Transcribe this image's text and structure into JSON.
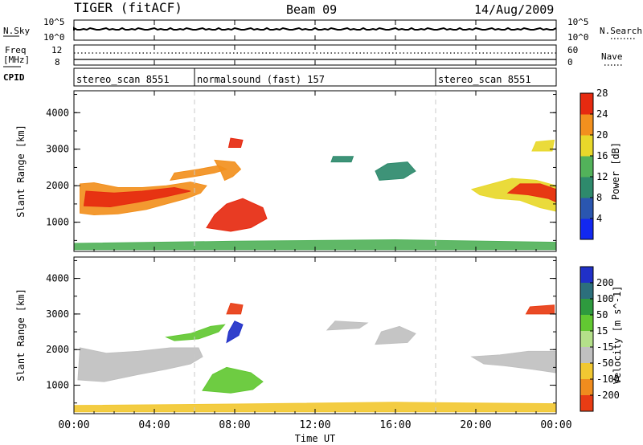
{
  "header": {
    "radar": "TIGER (fitACF)",
    "beam": "Beam 09",
    "date": "14/Aug/2009"
  },
  "noise_panel": {
    "left_label": "N.Sky",
    "left_ticks": [
      "10^5",
      "10^0"
    ],
    "right_ticks": [
      "10^5",
      "10^0"
    ],
    "right_label": "N.Search"
  },
  "freq_panel": {
    "left_label_line1": "Freq",
    "left_label_line2": "[MHz]",
    "left_ticks": [
      "12",
      "8"
    ],
    "right_ticks": [
      "60",
      "0"
    ],
    "right_label": "Nave"
  },
  "cpid": {
    "label": "CPID",
    "segments": [
      {
        "name": "stereo_scan 8551",
        "start_hour": 0,
        "end_hour": 6
      },
      {
        "name": "normalsound (fast) 157",
        "start_hour": 6,
        "end_hour": 18
      },
      {
        "name": "stereo_scan 8551",
        "start_hour": 18,
        "end_hour": 24
      }
    ]
  },
  "chart_data": [
    {
      "type": "heatmap",
      "panel": "power",
      "ylabel": "Slant Range [km]",
      "yticks": [
        "1000",
        "2000",
        "3000",
        "4000"
      ],
      "ylim": [
        200,
        4600
      ],
      "xlim": [
        0,
        24
      ],
      "colorbar": {
        "label": "Power [dB]",
        "ticks": [
          "4",
          "8",
          "12",
          "16",
          "20",
          "24",
          "28"
        ],
        "colors": [
          "#1228f0",
          "#2a56b0",
          "#2e8a6c",
          "#52b25a",
          "#e8d82a",
          "#f2901e",
          "#e62a10"
        ]
      },
      "echo_regions": [
        {
          "name": "band-early",
          "points": [
            [
              0.3,
              1250
            ],
            [
              1.0,
              1200
            ],
            [
              2.2,
              1230
            ],
            [
              3.6,
              1350
            ],
            [
              4.6,
              1500
            ],
            [
              5.6,
              1650
            ],
            [
              6.3,
              1800
            ],
            [
              6.6,
              2000
            ],
            [
              5.8,
              2100
            ],
            [
              4.6,
              2000
            ],
            [
              3.4,
              1950
            ],
            [
              2.2,
              1950
            ],
            [
              1.0,
              2080
            ],
            [
              0.3,
              2050
            ]
          ],
          "level": 20
        },
        {
          "name": "core-early",
          "points": [
            [
              0.5,
              1450
            ],
            [
              1.8,
              1420
            ],
            [
              3.2,
              1550
            ],
            [
              4.6,
              1700
            ],
            [
              5.8,
              1850
            ],
            [
              5.0,
              1950
            ],
            [
              3.4,
              1850
            ],
            [
              2.0,
              1800
            ],
            [
              0.6,
              1850
            ]
          ],
          "level": 26
        },
        {
          "name": "upper-streak",
          "points": [
            [
              4.8,
              2150
            ],
            [
              6.0,
              2250
            ],
            [
              7.0,
              2350
            ],
            [
              7.6,
              2450
            ],
            [
              7.2,
              2550
            ],
            [
              6.2,
              2450
            ],
            [
              5.0,
              2350
            ]
          ],
          "level": 22
        },
        {
          "name": "fan",
          "points": [
            [
              7.0,
              2700
            ],
            [
              8.0,
              2650
            ],
            [
              8.3,
              2450
            ],
            [
              7.9,
              2250
            ],
            [
              7.5,
              2150
            ],
            [
              7.3,
              2400
            ]
          ],
          "level": 20
        },
        {
          "name": "blob-0800",
          "points": [
            [
              6.6,
              850
            ],
            [
              7.8,
              750
            ],
            [
              8.8,
              850
            ],
            [
              9.6,
              1100
            ],
            [
              9.4,
              1400
            ],
            [
              8.4,
              1650
            ],
            [
              7.6,
              1500
            ],
            [
              7.0,
              1200
            ]
          ],
          "level": 26
        },
        {
          "name": "patch-0800-top",
          "points": [
            [
              7.7,
              3050
            ],
            [
              8.3,
              3050
            ],
            [
              8.4,
              3250
            ],
            [
              7.8,
              3300
            ]
          ],
          "level": 26
        },
        {
          "name": "patch-1300",
          "points": [
            [
              12.8,
              2650
            ],
            [
              13.8,
              2650
            ],
            [
              13.9,
              2800
            ],
            [
              12.9,
              2800
            ]
          ],
          "level": 10
        },
        {
          "name": "patch-1600",
          "points": [
            [
              15.2,
              2150
            ],
            [
              16.4,
              2200
            ],
            [
              17.0,
              2400
            ],
            [
              16.6,
              2650
            ],
            [
              15.6,
              2600
            ],
            [
              15.0,
              2400
            ]
          ],
          "level": 10
        },
        {
          "name": "band-late",
          "points": [
            [
              19.8,
              1900
            ],
            [
              20.8,
              2050
            ],
            [
              21.8,
              2200
            ],
            [
              23.0,
              2150
            ],
            [
              24.0,
              2000
            ],
            [
              24.0,
              1300
            ],
            [
              23.2,
              1400
            ],
            [
              22.2,
              1600
            ],
            [
              21.0,
              1650
            ],
            [
              20.2,
              1750
            ]
          ],
          "level": 18
        },
        {
          "name": "core-late",
          "points": [
            [
              21.6,
              1800
            ],
            [
              22.6,
              1750
            ],
            [
              23.6,
              1650
            ],
            [
              24.0,
              1550
            ],
            [
              24.0,
              1900
            ],
            [
              23.2,
              2050
            ],
            [
              22.2,
              2050
            ]
          ],
          "level": 26
        },
        {
          "name": "patch-2300-top",
          "points": [
            [
              22.8,
              2950
            ],
            [
              23.8,
              2950
            ],
            [
              23.9,
              3250
            ],
            [
              23.0,
              3200
            ]
          ],
          "level": 18
        },
        {
          "name": "ground-scatter",
          "points": [
            [
              0,
              250
            ],
            [
              24,
              250
            ],
            [
              24,
              450
            ],
            [
              16,
              520
            ],
            [
              8,
              480
            ],
            [
              0,
              420
            ]
          ],
          "level": 12
        }
      ]
    },
    {
      "type": "heatmap",
      "panel": "velocity",
      "ylabel": "Slant Range [km]",
      "yticks": [
        "1000",
        "2000",
        "3000",
        "4000"
      ],
      "ylim": [
        200,
        4600
      ],
      "xlim": [
        0,
        24
      ],
      "colorbar": {
        "label": "Velocity [m s^-1]",
        "ticks": [
          "200",
          "100",
          "50",
          "15",
          "-15",
          "-50",
          "-100",
          "-200"
        ],
        "colors": [
          "#2030c8",
          "#2c6f7c",
          "#2e9a3e",
          "#62c832",
          "#b4e08a",
          "#c0c0c0",
          "#f2c832",
          "#f08c1e",
          "#e83c14"
        ]
      },
      "echo_regions": [
        {
          "name": "gray-band-early",
          "points": [
            [
              0.2,
              1150
            ],
            [
              1.5,
              1100
            ],
            [
              3.2,
              1300
            ],
            [
              4.6,
              1450
            ],
            [
              5.8,
              1600
            ],
            [
              6.4,
              1800
            ],
            [
              6.2,
              2050
            ],
            [
              4.8,
              2050
            ],
            [
              3.2,
              1950
            ],
            [
              1.6,
              1900
            ],
            [
              0.3,
              2050
            ]
          ],
          "color": "#c0c0c0"
        },
        {
          "name": "green-blob-0800",
          "points": [
            [
              6.4,
              850
            ],
            [
              7.8,
              780
            ],
            [
              8.9,
              880
            ],
            [
              9.4,
              1100
            ],
            [
              8.8,
              1350
            ],
            [
              7.6,
              1500
            ],
            [
              6.9,
              1300
            ]
          ],
          "color": "#62c832"
        },
        {
          "name": "green-arc",
          "points": [
            [
              4.6,
              2350
            ],
            [
              5.8,
              2450
            ],
            [
              6.8,
              2650
            ],
            [
              7.5,
              2700
            ],
            [
              7.2,
              2500
            ],
            [
              6.2,
              2300
            ],
            [
              5.0,
              2250
            ]
          ],
          "color": "#62c832"
        },
        {
          "name": "blue-streak",
          "points": [
            [
              7.6,
              2200
            ],
            [
              8.2,
              2400
            ],
            [
              8.4,
              2700
            ],
            [
              8.0,
              2800
            ],
            [
              7.7,
              2500
            ]
          ],
          "color": "#2030c8"
        },
        {
          "name": "red-patch-0800",
          "points": [
            [
              7.6,
              3000
            ],
            [
              8.3,
              3000
            ],
            [
              8.4,
              3250
            ],
            [
              7.8,
              3300
            ]
          ],
          "color": "#e83c14"
        },
        {
          "name": "gray-patches-mid",
          "points": [
            [
              12.6,
              2550
            ],
            [
              14.2,
              2600
            ],
            [
              14.6,
              2750
            ],
            [
              13.0,
              2800
            ]
          ],
          "color": "#c0c0c0"
        },
        {
          "name": "gray-patch-1600",
          "points": [
            [
              15.0,
              2150
            ],
            [
              16.6,
              2200
            ],
            [
              17.0,
              2450
            ],
            [
              16.2,
              2650
            ],
            [
              15.3,
              2500
            ]
          ],
          "color": "#c0c0c0"
        },
        {
          "name": "gray-band-late",
          "points": [
            [
              19.8,
              1800
            ],
            [
              21.2,
              1850
            ],
            [
              22.6,
              1950
            ],
            [
              24.0,
              1950
            ],
            [
              24.0,
              1350
            ],
            [
              22.8,
              1450
            ],
            [
              21.4,
              1550
            ],
            [
              20.4,
              1600
            ]
          ],
          "color": "#c0c0c0"
        },
        {
          "name": "red-patch-late",
          "points": [
            [
              22.5,
              3000
            ],
            [
              23.9,
              3000
            ],
            [
              23.9,
              3250
            ],
            [
              22.7,
              3200
            ]
          ],
          "color": "#e83c14"
        },
        {
          "name": "ground-scatter",
          "points": [
            [
              0,
              250
            ],
            [
              24,
              250
            ],
            [
              24,
              480
            ],
            [
              16,
              520
            ],
            [
              8,
              470
            ],
            [
              0,
              430
            ]
          ],
          "color": "#f2c832"
        }
      ]
    }
  ],
  "xaxis": {
    "label": "Time UT",
    "ticks": [
      "00:00",
      "04:00",
      "08:00",
      "12:00",
      "16:00",
      "20:00",
      "00:00"
    ]
  }
}
